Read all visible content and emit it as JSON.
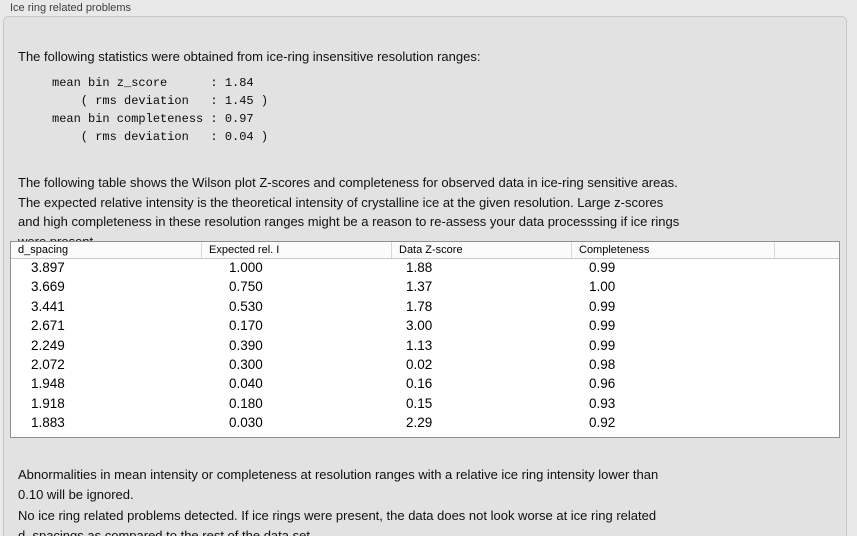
{
  "panel": {
    "title": "Ice ring related problems"
  },
  "intro": {
    "text": "The following statistics were obtained from ice-ring insensitive resolution ranges:",
    "stats_block": "mean bin z_score      : 1.84\n    ( rms deviation   : 1.45 )\nmean bin completeness : 0.97\n    ( rms deviation   : 0.04 )"
  },
  "description": {
    "text": "The following table shows the Wilson plot Z-scores and completeness for observed data in ice-ring sensitive areas.\nThe expected relative intensity is the theoretical intensity of crystalline ice at the given resolution. Large z-scores\nand high completeness in these resolution ranges might be a reason to re-assess your data processsing if ice rings\nwere present."
  },
  "table": {
    "columns": [
      "d_spacing",
      "Expected rel. I",
      "Data Z-score",
      "Completeness",
      ""
    ],
    "rows": [
      [
        "3.897",
        "1.000",
        "1.88",
        "0.99"
      ],
      [
        "3.669",
        "0.750",
        "1.37",
        "1.00"
      ],
      [
        "3.441",
        "0.530",
        "1.78",
        "0.99"
      ],
      [
        "2.671",
        "0.170",
        "3.00",
        "0.99"
      ],
      [
        "2.249",
        "0.390",
        "1.13",
        "0.99"
      ],
      [
        "2.072",
        "0.300",
        "0.02",
        "0.98"
      ],
      [
        "1.948",
        "0.040",
        "0.16",
        "0.96"
      ],
      [
        "1.918",
        "0.180",
        "0.15",
        "0.93"
      ],
      [
        "1.883",
        "0.030",
        "2.29",
        "0.92"
      ]
    ]
  },
  "footer": {
    "ignore_note": "Abnormalities in mean intensity or completeness at resolution ranges with a relative ice ring intensity lower than\n0.10 will be ignored.",
    "conclusion": "No ice ring related problems detected. If ice rings were present, the data does not look worse at ice ring related\nd_spacings as compared to the rest of the data set."
  },
  "colors": {
    "page_bg": "#e9e9e9",
    "panel_bg": "#e2e2e2",
    "table_bg": "#ffffff",
    "border": "#8f8f8f"
  }
}
